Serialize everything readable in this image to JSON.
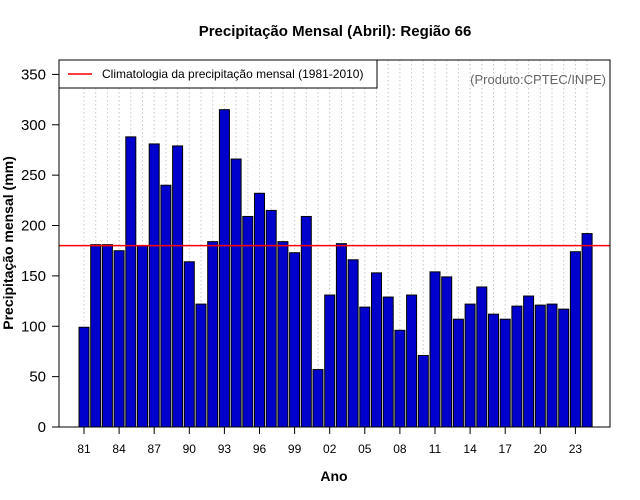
{
  "chart_data": {
    "type": "bar",
    "title": "Precipitação Mensal (Abril): Região 66",
    "xlabel": "Ano",
    "ylabel": "Precipitação mensal (mm)",
    "ylim": [
      0,
      360
    ],
    "yticks": [
      0,
      50,
      100,
      150,
      200,
      250,
      300,
      350
    ],
    "grid": "vertical dotted",
    "categories": [
      "1981",
      "1982",
      "1983",
      "1984",
      "1985",
      "1986",
      "1987",
      "1988",
      "1989",
      "1990",
      "1991",
      "1992",
      "1993",
      "1994",
      "1995",
      "1996",
      "1997",
      "1998",
      "1999",
      "2000",
      "2001",
      "2002",
      "2003",
      "2004",
      "2005",
      "2006",
      "2007",
      "2008",
      "2009",
      "2010",
      "2011",
      "2012",
      "2013",
      "2014",
      "2015",
      "2016",
      "2017",
      "2018",
      "2019",
      "2020",
      "2021",
      "2022",
      "2023",
      "2024"
    ],
    "xtick_labels": [
      "81",
      "84",
      "87",
      "90",
      "93",
      "96",
      "99",
      "02",
      "05",
      "08",
      "11",
      "14",
      "17",
      "20",
      "23"
    ],
    "values": [
      99,
      181,
      181,
      175,
      288,
      180,
      281,
      240,
      279,
      164,
      122,
      184,
      315,
      266,
      209,
      232,
      215,
      184,
      173,
      209,
      57,
      131,
      182,
      166,
      119,
      153,
      129,
      96,
      131,
      71,
      154,
      149,
      107,
      122,
      139,
      112,
      107,
      120,
      130,
      121,
      122,
      117,
      174,
      192
    ],
    "bar_color": "#0000cd",
    "climatology": {
      "value": 180,
      "label": "Climatologia da precipitação mensal (1981-2010)",
      "color": "#ff0000"
    },
    "legend_position": "top-left",
    "source_note": "(Produto:CPTEC/INPE)"
  }
}
